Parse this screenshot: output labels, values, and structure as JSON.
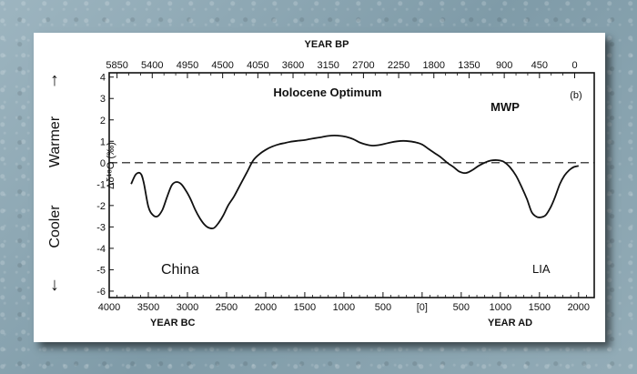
{
  "chart_data": {
    "type": "line",
    "panel_label": "(b)",
    "top_axis": {
      "title": "YEAR BP",
      "tick_labels": [
        "5850",
        "5400",
        "4950",
        "4500",
        "4050",
        "3600",
        "3150",
        "2700",
        "2250",
        "1800",
        "1350",
        "900",
        "450",
        "0"
      ]
    },
    "bottom_axis": {
      "tick_labels": [
        "4000",
        "3500",
        "3000",
        "2500",
        "2000",
        "1500",
        "1000",
        "500",
        "[0]",
        "500",
        "1000",
        "1500",
        "2000"
      ],
      "tick_values": [
        -4000,
        -3500,
        -3000,
        -2500,
        -2000,
        -1500,
        -1000,
        -500,
        0,
        500,
        1000,
        1500,
        2000
      ],
      "label_bc": "YEAR BC",
      "label_ad": "YEAR AD",
      "xlim": [
        -4000,
        2200
      ]
    },
    "y_axis": {
      "label": "Δδ¹⁸O (‰)",
      "ylim": [
        -6.3,
        4.2
      ],
      "ticks": [
        4,
        3,
        2,
        1,
        0,
        -1,
        -2,
        -3,
        -4,
        -5,
        -6
      ]
    },
    "side_labels": {
      "warmer": "Warmer",
      "cooler": "Cooler",
      "up_arrow": "↑",
      "down_arrow": "↓"
    },
    "annotations": {
      "holocene": "Holocene Optimum",
      "mwp": "MWP",
      "china": "China",
      "lia": "LIA"
    },
    "baseline": {
      "y": 0,
      "style": "dashed"
    },
    "series": [
      {
        "x": [
          -3720,
          -3660,
          -3600,
          -3560,
          -3500,
          -3440,
          -3380,
          -3320,
          -3260,
          -3200,
          -3140,
          -3080,
          -3020,
          -2960,
          -2900,
          -2840,
          -2780,
          -2720,
          -2660,
          -2600,
          -2540,
          -2480,
          -2400,
          -2320,
          -2240,
          -2160,
          -2080,
          -2000,
          -1920,
          -1840,
          -1760,
          -1680,
          -1600,
          -1520,
          -1440,
          -1360,
          -1280,
          -1200,
          -1120,
          -1040,
          -960,
          -880,
          -800,
          -720,
          -640,
          -560,
          -480,
          -400,
          -320,
          -240,
          -160,
          -80,
          0,
          80,
          160,
          240,
          320,
          400,
          480,
          560,
          640,
          720,
          800,
          880,
          960,
          1040,
          1120,
          1200,
          1280,
          1340,
          1400,
          1460,
          1520,
          1580,
          1640,
          1700,
          1760,
          1820,
          1880,
          1940,
          2000
        ],
        "y": [
          -1.0,
          -0.55,
          -0.5,
          -0.9,
          -2.05,
          -2.45,
          -2.5,
          -2.2,
          -1.6,
          -1.05,
          -0.9,
          -1.0,
          -1.3,
          -1.7,
          -2.2,
          -2.6,
          -2.9,
          -3.05,
          -3.05,
          -2.8,
          -2.45,
          -2.0,
          -1.55,
          -1.0,
          -0.45,
          0.1,
          0.4,
          0.6,
          0.75,
          0.85,
          0.92,
          0.98,
          1.02,
          1.05,
          1.1,
          1.15,
          1.2,
          1.25,
          1.27,
          1.25,
          1.2,
          1.1,
          0.95,
          0.85,
          0.8,
          0.82,
          0.88,
          0.95,
          1.0,
          1.02,
          1.0,
          0.95,
          0.85,
          0.65,
          0.45,
          0.25,
          0.0,
          -0.2,
          -0.42,
          -0.48,
          -0.35,
          -0.15,
          0.0,
          0.1,
          0.12,
          0.05,
          -0.2,
          -0.6,
          -1.2,
          -1.7,
          -2.3,
          -2.52,
          -2.55,
          -2.45,
          -2.1,
          -1.6,
          -1.0,
          -0.6,
          -0.35,
          -0.2,
          -0.15
        ]
      }
    ]
  }
}
